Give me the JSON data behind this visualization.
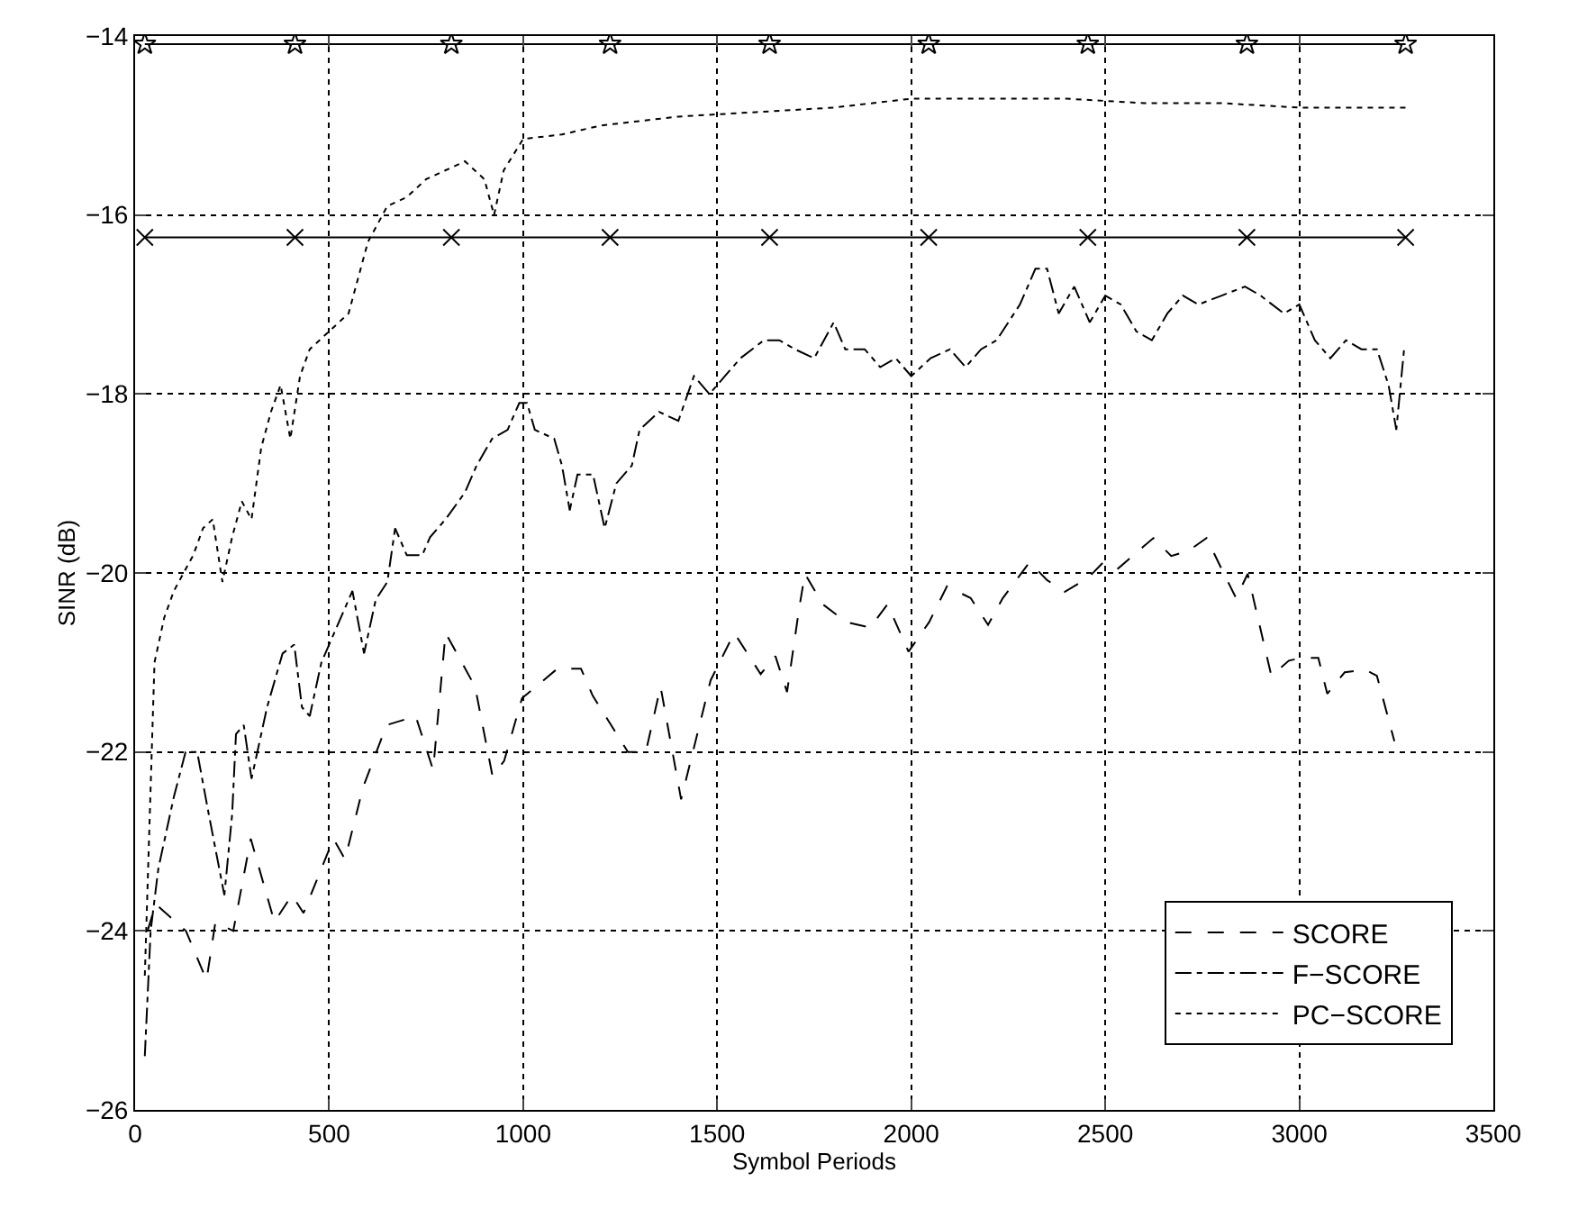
{
  "chart_data": {
    "type": "line",
    "xlabel": "Symbol Periods",
    "ylabel": "SINR (dB)",
    "xlim": [
      0,
      3500
    ],
    "xticks": [
      0,
      500,
      1000,
      1500,
      2000,
      2500,
      3000,
      3500
    ],
    "ylim": [
      -26,
      -14
    ],
    "yticks": [
      -26,
      -24,
      -22,
      -20,
      -18,
      -16,
      -14
    ],
    "grid": true,
    "legend": "bottom right",
    "series": [
      {
        "name": "SCORE",
        "color": "#000000",
        "line_style": "dashed",
        "marker": "none",
        "x": [
          32,
          53,
          131,
          184,
          207,
          253,
          298,
          359,
          404,
          434,
          511,
          541,
          587,
          648,
          723,
          768,
          800,
          876,
          921,
          951,
          997,
          1088,
          1149,
          1179,
          1270,
          1316,
          1354,
          1407,
          1483,
          1544,
          1612,
          1650,
          1680,
          1711,
          1726,
          1772,
          1833,
          1894,
          1939,
          1993,
          2046,
          2092,
          2153,
          2198,
          2236,
          2305,
          2350,
          2396,
          2457,
          2495,
          2533,
          2578,
          2624,
          2670,
          2715,
          2761,
          2806,
          2837,
          2867,
          2928,
          2973,
          3004,
          3049,
          3072,
          3117,
          3170,
          3200,
          3245
        ],
        "values": [
          -24.0,
          -23.7,
          -24.0,
          -24.55,
          -23.9,
          -24.0,
          -22.97,
          -23.9,
          -23.6,
          -23.8,
          -22.97,
          -23.2,
          -22.4,
          -21.7,
          -21.6,
          -22.2,
          -20.67,
          -21.27,
          -22.27,
          -22.1,
          -21.4,
          -21.07,
          -21.07,
          -21.37,
          -22.0,
          -22.0,
          -21.27,
          -22.53,
          -21.2,
          -20.67,
          -21.13,
          -20.93,
          -21.33,
          -20.4,
          -20.01,
          -20.35,
          -20.55,
          -20.61,
          -20.35,
          -20.88,
          -20.55,
          -20.15,
          -20.28,
          -20.58,
          -20.28,
          -19.88,
          -20.08,
          -20.21,
          -20.05,
          -19.88,
          -19.95,
          -19.78,
          -19.61,
          -19.81,
          -19.75,
          -19.61,
          -20.01,
          -20.28,
          -20.01,
          -21.15,
          -20.98,
          -20.95,
          -20.95,
          -21.35,
          -21.11,
          -21.08,
          -21.15,
          -21.88
        ]
      },
      {
        "name": "F−SCORE",
        "color": "#000000",
        "line_style": "dashdot",
        "marker": "none",
        "x": [
          25,
          40,
          60,
          100,
          130,
          160,
          190,
          230,
          250,
          260,
          280,
          300,
          340,
          380,
          410,
          430,
          450,
          480,
          520,
          560,
          590,
          620,
          650,
          670,
          700,
          740,
          760,
          800,
          850,
          880,
          920,
          960,
          990,
          1010,
          1030,
          1080,
          1100,
          1120,
          1140,
          1180,
          1210,
          1240,
          1280,
          1300,
          1350,
          1400,
          1440,
          1480,
          1520,
          1560,
          1620,
          1660,
          1700,
          1750,
          1800,
          1830,
          1880,
          1920,
          1960,
          2000,
          2050,
          2100,
          2140,
          2180,
          2220,
          2280,
          2320,
          2350,
          2380,
          2420,
          2460,
          2500,
          2540,
          2580,
          2620,
          2660,
          2700,
          2740,
          2800,
          2860,
          2900,
          2960,
          3000,
          3040,
          3080,
          3120,
          3160,
          3200,
          3230,
          3250,
          3270
        ],
        "values": [
          -25.4,
          -24,
          -23.3,
          -22.5,
          -22,
          -22.0,
          -22.7,
          -23.6,
          -22.7,
          -21.8,
          -21.7,
          -22.3,
          -21.5,
          -20.9,
          -20.8,
          -21.5,
          -21.6,
          -21.0,
          -20.6,
          -20.2,
          -20.9,
          -20.3,
          -20.1,
          -19.5,
          -19.8,
          -19.8,
          -19.6,
          -19.4,
          -19.1,
          -18.8,
          -18.5,
          -18.4,
          -18.1,
          -18.1,
          -18.4,
          -18.5,
          -18.8,
          -19.3,
          -18.9,
          -18.9,
          -19.5,
          -19.0,
          -18.8,
          -18.4,
          -18.2,
          -18.3,
          -17.8,
          -18.0,
          -17.8,
          -17.6,
          -17.4,
          -17.4,
          -17.5,
          -17.6,
          -17.2,
          -17.5,
          -17.5,
          -17.7,
          -17.6,
          -17.8,
          -17.6,
          -17.5,
          -17.7,
          -17.5,
          -17.4,
          -17.0,
          -16.6,
          -16.6,
          -17.1,
          -16.8,
          -17.2,
          -16.9,
          -17.0,
          -17.3,
          -17.4,
          -17.1,
          -16.9,
          -17.0,
          -16.9,
          -16.8,
          -16.9,
          -17.1,
          -17.0,
          -17.4,
          -17.6,
          -17.4,
          -17.5,
          -17.5,
          -17.9,
          -18.4,
          -17.5
        ]
      },
      {
        "name": "PC−SCORE",
        "color": "#000000",
        "line_style": "dotted",
        "marker": "none",
        "x": [
          25,
          50,
          75,
          100,
          125,
          150,
          175,
          200,
          225,
          250,
          275,
          300,
          325,
          350,
          375,
          400,
          425,
          450,
          500,
          550,
          600,
          650,
          700,
          750,
          800,
          850,
          900,
          925,
          950,
          1000,
          1100,
          1200,
          1400,
          1600,
          1800,
          2000,
          2200,
          2400,
          2600,
          2800,
          3000,
          3275
        ],
        "values": [
          -24.5,
          -21,
          -20.5,
          -20.2,
          -20,
          -19.8,
          -19.5,
          -19.4,
          -20.1,
          -19.6,
          -19.2,
          -19.4,
          -18.6,
          -18.2,
          -17.9,
          -18.5,
          -17.8,
          -17.5,
          -17.3,
          -17.1,
          -16.3,
          -15.9,
          -15.8,
          -15.6,
          -15.5,
          -15.4,
          -15.6,
          -16.0,
          -15.5,
          -15.15,
          -15.1,
          -15.0,
          -14.9,
          -14.85,
          -14.8,
          -14.7,
          -14.7,
          -14.7,
          -14.75,
          -14.75,
          -14.8,
          -14.8
        ]
      },
      {
        "color": "#000000",
        "line_style": "solid",
        "marker": "star",
        "x": [
          25,
          412,
          815,
          1224,
          1635,
          2045,
          2455,
          2865,
          3274
        ],
        "values": [
          -14.09,
          -14.09,
          -14.09,
          -14.09,
          -14.09,
          -14.09,
          -14.09,
          -14.09,
          -14.09
        ]
      },
      {
        "color": "#000000",
        "line_style": "solid",
        "marker": "cross",
        "x": [
          25,
          412,
          815,
          1224,
          1635,
          2045,
          2455,
          2865,
          3274
        ],
        "values": [
          -16.25,
          -16.25,
          -16.25,
          -16.25,
          -16.25,
          -16.25,
          -16.25,
          -16.25,
          -16.25
        ]
      }
    ]
  }
}
